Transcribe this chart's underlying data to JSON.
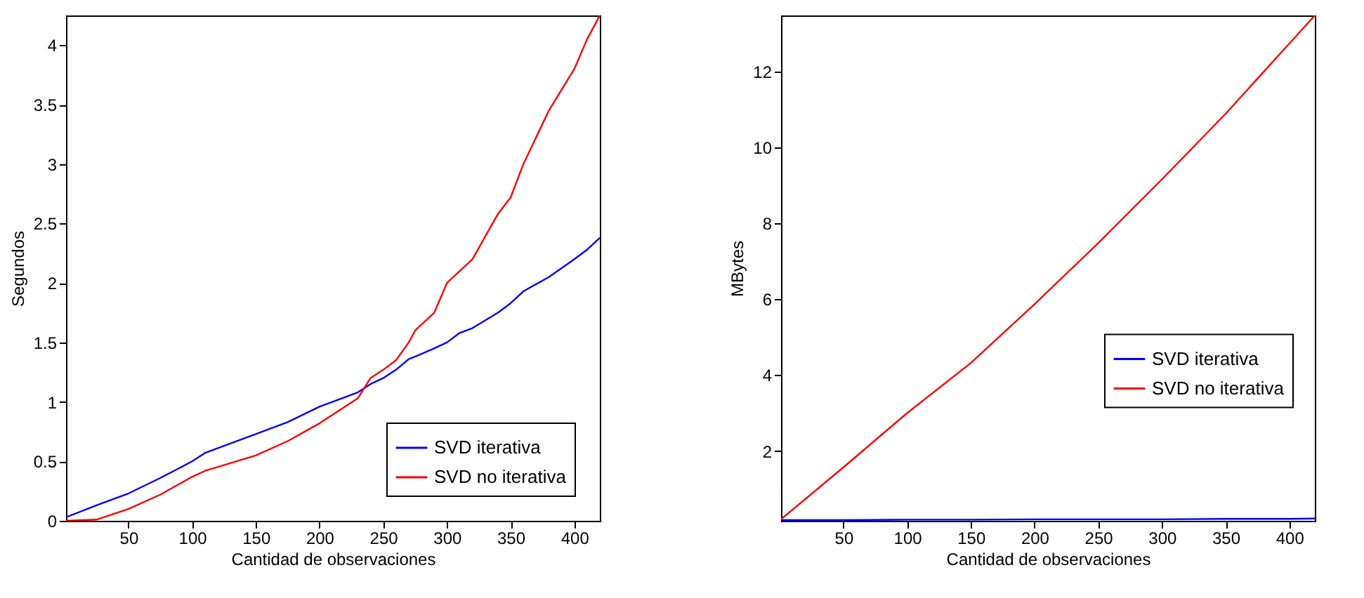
{
  "chart_data": [
    {
      "type": "line",
      "xlabel": "Cantidad de observaciones",
      "ylabel": "Segundos",
      "xlim": [
        1,
        420
      ],
      "ylim": [
        0,
        4.25
      ],
      "xticks": [
        50,
        100,
        150,
        200,
        250,
        300,
        350,
        400
      ],
      "yticks": [
        0,
        0.5,
        1,
        1.5,
        2,
        2.5,
        3,
        3.5,
        4
      ],
      "grid": false,
      "legend": "bottom right",
      "line_style": "solid",
      "x": [
        1,
        25,
        50,
        75,
        100,
        110,
        150,
        175,
        200,
        230,
        240,
        250,
        260,
        270,
        275,
        290,
        300,
        310,
        320,
        340,
        350,
        360,
        380,
        400,
        410,
        420
      ],
      "series": [
        {
          "name": "SVD iterativa",
          "color": "#0000ff",
          "values": [
            0.03,
            0.13,
            0.23,
            0.36,
            0.5,
            0.57,
            0.73,
            0.83,
            0.96,
            1.08,
            1.15,
            1.2,
            1.27,
            1.36,
            1.38,
            1.45,
            1.5,
            1.58,
            1.62,
            1.75,
            1.83,
            1.93,
            2.05,
            2.2,
            2.28,
            2.38
          ]
        },
        {
          "name": "SVD no iterativa",
          "color": "#ff0000",
          "values": [
            0.0,
            0.01,
            0.1,
            0.22,
            0.37,
            0.42,
            0.55,
            0.67,
            0.82,
            1.03,
            1.2,
            1.27,
            1.35,
            1.5,
            1.6,
            1.75,
            2.0,
            2.1,
            2.2,
            2.58,
            2.72,
            3.0,
            3.45,
            3.8,
            4.05,
            4.25
          ]
        }
      ]
    },
    {
      "type": "line",
      "xlabel": "Cantidad de observaciones",
      "ylabel": "MBytes",
      "xlim": [
        1,
        420
      ],
      "ylim": [
        0.16,
        13.48
      ],
      "xticks": [
        50,
        100,
        150,
        200,
        250,
        300,
        350,
        400
      ],
      "yticks": [
        2,
        4,
        6,
        8,
        10,
        12
      ],
      "grid": false,
      "legend": "right",
      "line_style": "solid",
      "x": [
        1,
        50,
        100,
        150,
        200,
        250,
        300,
        350,
        400,
        420
      ],
      "series": [
        {
          "name": "SVD iterativa",
          "color": "#0000ff",
          "values": [
            0.18,
            0.18,
            0.19,
            0.19,
            0.2,
            0.2,
            0.2,
            0.21,
            0.21,
            0.22
          ]
        },
        {
          "name": "SVD no iterativa",
          "color": "#ff0000",
          "values": [
            0.2,
            1.57,
            3.0,
            4.32,
            5.87,
            7.48,
            9.16,
            10.89,
            12.74,
            13.48
          ]
        }
      ]
    }
  ]
}
